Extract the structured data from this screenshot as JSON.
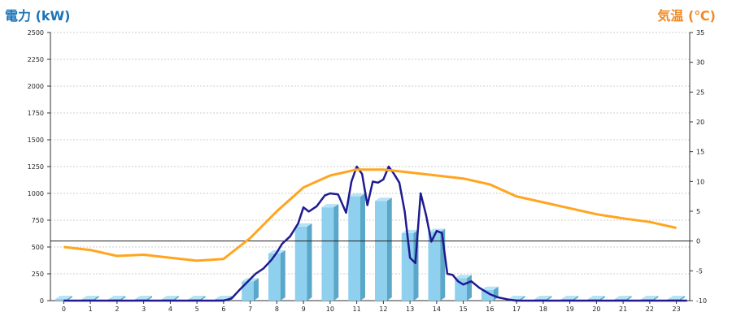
{
  "chart_data": {
    "type": "bar",
    "left_axis": {
      "label": "電力 (kW)",
      "ylim": [
        0,
        2500
      ],
      "ticks": [
        0,
        250,
        500,
        750,
        1000,
        1250,
        1500,
        1750,
        2000,
        2250,
        2500
      ]
    },
    "right_axis": {
      "label": "気温 (℃)",
      "ylim": [
        -10,
        35
      ],
      "ticks": [
        -10,
        -5,
        0,
        5,
        10,
        15,
        20,
        25,
        30,
        35
      ]
    },
    "categories": [
      "0",
      "1",
      "2",
      "3",
      "4",
      "5",
      "6",
      "7",
      "8",
      "9",
      "10",
      "11",
      "12",
      "13",
      "14",
      "15",
      "16",
      "17",
      "18",
      "19",
      "20",
      "21",
      "22",
      "23"
    ],
    "hourly_power_bars": [
      0,
      0,
      0,
      0,
      0,
      0,
      0,
      180,
      440,
      690,
      870,
      970,
      930,
      630,
      640,
      210,
      100,
      0,
      0,
      0,
      0,
      0,
      0,
      0
    ],
    "power_line": {
      "x": [
        0,
        5,
        6,
        6.3,
        6.6,
        7,
        7.2,
        7.5,
        7.8,
        8,
        8.2,
        8.5,
        8.8,
        9,
        9.2,
        9.5,
        9.8,
        10,
        10.3,
        10.6,
        10.8,
        11,
        11.2,
        11.4,
        11.6,
        11.8,
        12,
        12.2,
        12.4,
        12.6,
        12.8,
        13,
        13.2,
        13.4,
        13.6,
        13.8,
        14,
        14.2,
        14.4,
        14.6,
        14.8,
        15,
        15.3,
        15.6,
        16,
        16.3,
        16.7,
        17,
        23.4
      ],
      "y": [
        0,
        0,
        0,
        20,
        100,
        200,
        250,
        300,
        380,
        450,
        530,
        600,
        720,
        870,
        830,
        880,
        980,
        1000,
        990,
        820,
        1110,
        1250,
        1180,
        890,
        1110,
        1100,
        1130,
        1250,
        1180,
        1100,
        830,
        400,
        350,
        1000,
        800,
        550,
        650,
        630,
        250,
        240,
        180,
        150,
        180,
        120,
        60,
        30,
        10,
        0,
        0
      ]
    },
    "temperature_line": {
      "hours": [
        0,
        1,
        2,
        3,
        4,
        5,
        6,
        7,
        8,
        9,
        10,
        11,
        12,
        13,
        14,
        15,
        16,
        17,
        18,
        19,
        20,
        21,
        22,
        23
      ],
      "values": [
        -1,
        -1.5,
        -2.5,
        -2.3,
        -2.8,
        -3.3,
        -3,
        0.5,
        5,
        9,
        11,
        12,
        12,
        11.5,
        11,
        10.5,
        9.5,
        7.5,
        6.5,
        5.5,
        4.5,
        3.8,
        3.2,
        2.2
      ]
    },
    "reference_line_right_axis": 0,
    "colors": {
      "bar_front": "#8fd0ef",
      "bar_side": "#5aa7c9",
      "bar_top": "#b7e3f7",
      "power_line": "#1f1a8f",
      "temperature_line": "#ffa51f",
      "grid": "#cccccc",
      "left_label": "#1a73b8",
      "right_label": "#f08a24"
    },
    "grid": true
  }
}
